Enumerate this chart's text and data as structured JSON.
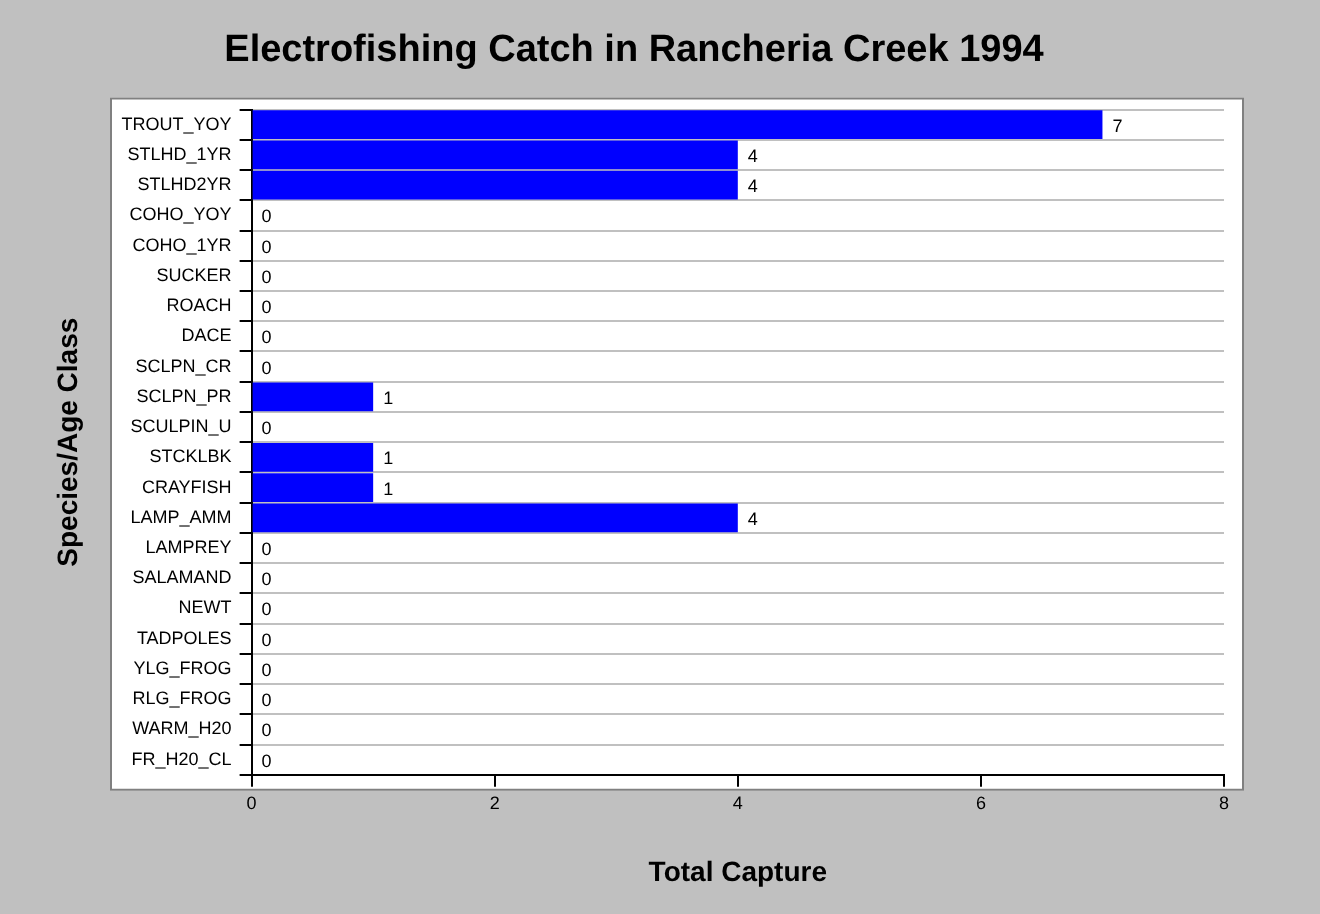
{
  "chart_data": {
    "type": "bar",
    "orientation": "horizontal",
    "title": "Electrofishing Catch in Rancheria Creek 1994",
    "xlabel": "Total Capture",
    "ylabel": "Species/Age Class",
    "categories": [
      "TROUT_YOY",
      "STLHD_1YR",
      "STLHD2YR",
      "COHO_YOY",
      "COHO_1YR",
      "SUCKER",
      "ROACH",
      "DACE",
      "SCLPN_CR",
      "SCLPN_PR",
      "SCULPIN_U",
      "STCKLBK",
      "CRAYFISH",
      "LAMP_AMM",
      "LAMPREY",
      "SALAMAND",
      "NEWT",
      "TADPOLES",
      "YLG_FROG",
      "RLG_FROG",
      "WARM_H20",
      "FR_H20_CL"
    ],
    "values": [
      7,
      4,
      4,
      0,
      0,
      0,
      0,
      0,
      0,
      1,
      0,
      1,
      1,
      4,
      0,
      0,
      0,
      0,
      0,
      0,
      0,
      0
    ],
    "color": "#0000ff",
    "xlim": [
      0,
      8
    ],
    "xticks": [
      0,
      2,
      4,
      6,
      8
    ],
    "grid": "y",
    "data_labels": true,
    "legend": false
  }
}
